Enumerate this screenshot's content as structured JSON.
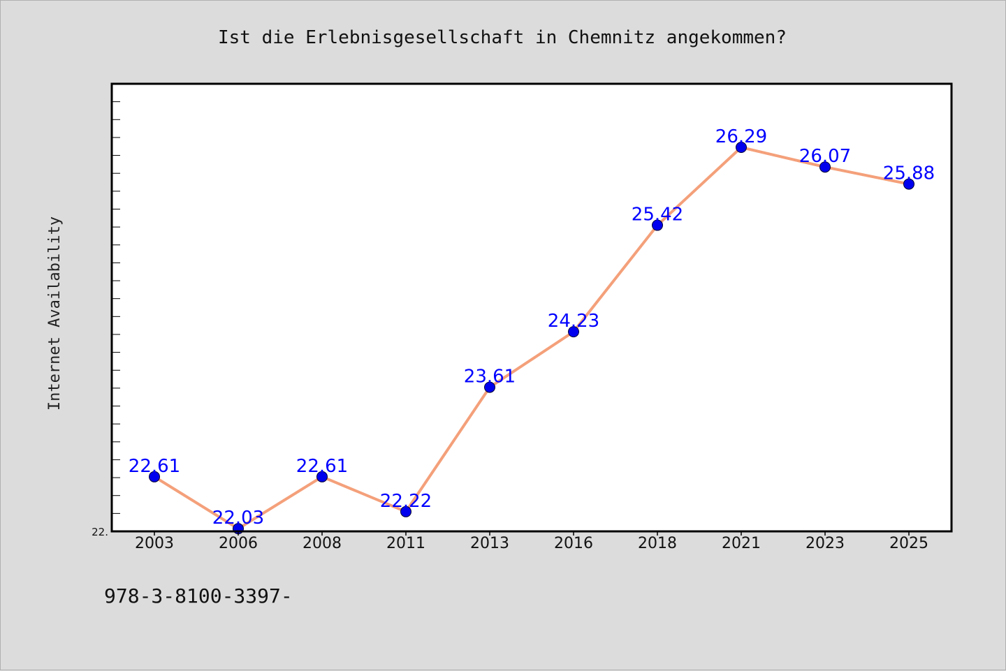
{
  "chart_data": {
    "type": "line",
    "title": "Ist die Erlebnisgesellschaft in Chemnitz angekommen?",
    "xlabel": "",
    "ylabel": "Internet Availability",
    "categories": [
      "2003",
      "2006",
      "2008",
      "2011",
      "2013",
      "2016",
      "2018",
      "2021",
      "2023",
      "2025"
    ],
    "series": [
      {
        "values": [
          22.61,
          22.03,
          22.61,
          22.22,
          23.61,
          24.23,
          25.42,
          26.29,
          26.07,
          25.88
        ],
        "labels": [
          "22.61",
          "22.03",
          "22.61",
          "22.22",
          "23.61",
          "24.23",
          "25.42",
          "26.29",
          "26.07",
          "25.88"
        ]
      }
    ],
    "ylim": [
      22.0,
      27.0
    ],
    "y_min_label": "22.",
    "grid": false,
    "legend": "none",
    "colors": {
      "line": "#f4a07a",
      "marker": "#0000ee",
      "data_label": "#0000ff",
      "plot_background": "#ffffff",
      "figure_background": "#dcdcdc"
    }
  },
  "footnote": "978-3-8100-3397-"
}
